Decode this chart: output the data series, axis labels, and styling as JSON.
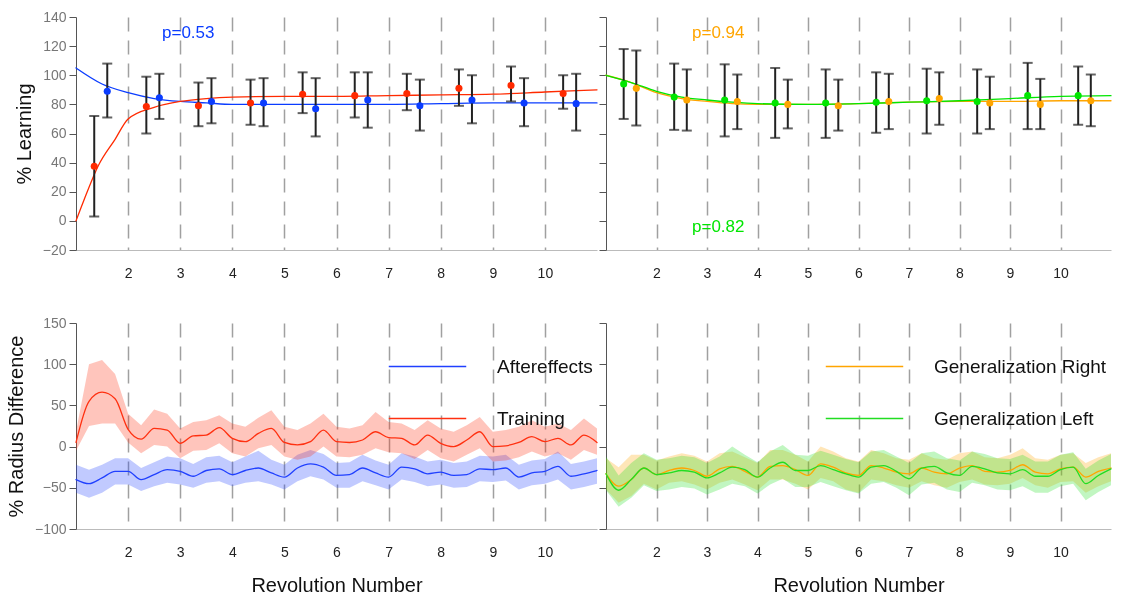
{
  "chart_data": [
    {
      "type": "scatter",
      "ylabel": "% Learning",
      "xlim": [
        1,
        11
      ],
      "xticks": [
        2,
        3,
        4,
        5,
        6,
        7,
        8,
        9,
        10
      ],
      "ylim": [
        -20,
        140
      ],
      "yticks": [
        -20,
        0,
        20,
        40,
        60,
        80,
        100,
        120,
        140
      ],
      "grid": "x",
      "annotations": [
        "p=0.53"
      ],
      "series": [
        {
          "color": "#0a3cff",
          "x": [
            1.6,
            2.6,
            3.6,
            4.6,
            5.6,
            6.6,
            7.6,
            8.6,
            9.6,
            10.6
          ],
          "values": [
            89,
            84.5,
            82,
            81,
            77,
            83,
            79,
            83,
            81,
            80.5
          ],
          "errors": [
            [
              71,
              108
            ],
            [
              70,
              101
            ],
            [
              67,
              98
            ],
            [
              65,
              98
            ],
            [
              58,
              98
            ],
            [
              64,
              102
            ],
            [
              62,
              97
            ],
            [
              67,
              100
            ],
            [
              65,
              98
            ],
            [
              62,
              101
            ]
          ]
        },
        {
          "color": "#ff2a00",
          "x": [
            1.35,
            2.35,
            3.35,
            4.35,
            5.35,
            6.35,
            7.35,
            8.35,
            9.35,
            10.35
          ],
          "values": [
            37.5,
            78.5,
            79,
            81,
            87,
            86,
            87.5,
            91,
            93,
            87.5
          ],
          "errors": [
            [
              3,
              72
            ],
            [
              60,
              99
            ],
            [
              65,
              95
            ],
            [
              66,
              97
            ],
            [
              74,
              102
            ],
            [
              71,
              102
            ],
            [
              76,
              101
            ],
            [
              79,
              104
            ],
            [
              82,
              106
            ],
            [
              77,
              100
            ]
          ]
        },
        {
          "type": "line",
          "color": "#0a3cff",
          "x": [
            1,
            1.5,
            2,
            2.5,
            3,
            3.5,
            4,
            5,
            6,
            7,
            8,
            9,
            10,
            11
          ],
          "values": [
            105,
            94,
            88,
            84,
            82,
            81,
            80,
            80,
            80,
            80,
            80.5,
            81,
            81,
            81
          ]
        },
        {
          "type": "line",
          "color": "#ff2a00",
          "x": [
            1,
            1.15,
            1.43,
            1.75,
            2,
            2.5,
            3,
            3.5,
            4,
            5,
            6,
            7,
            8,
            9,
            10,
            11
          ],
          "values": [
            0,
            14,
            38,
            56,
            70,
            78,
            82,
            84,
            85,
            85.5,
            85.5,
            86,
            86.5,
            87,
            88.5,
            90
          ]
        }
      ]
    },
    {
      "type": "scatter",
      "xlim": [
        1,
        11
      ],
      "xticks": [
        2,
        3,
        4,
        5,
        6,
        7,
        8,
        9,
        10
      ],
      "ylim": [
        -20,
        140
      ],
      "yticks": [
        -20,
        0,
        20,
        40,
        60,
        80,
        100,
        120,
        140
      ],
      "grid": "x",
      "tick_labels": "x",
      "annotations": [
        "p=0.94",
        "p=0.82"
      ],
      "series": [
        {
          "color": "#ffa500",
          "x": [
            1.6,
            2.6,
            3.6,
            4.6,
            5.6,
            6.6,
            7.6,
            8.6,
            9.6,
            10.6
          ],
          "values": [
            91,
            83,
            82,
            80,
            79,
            82,
            84,
            81,
            80,
            82.5
          ],
          "errors": [
            [
              65.5,
              117
            ],
            [
              62,
              104
            ],
            [
              63,
              100.5
            ],
            [
              63.5,
              97
            ],
            [
              62,
              97
            ],
            [
              63,
              101
            ],
            [
              66,
              102
            ],
            [
              63,
              99
            ],
            [
              63,
              97.5
            ],
            [
              65,
              100.5
            ]
          ]
        },
        {
          "color": "#00e600",
          "x": [
            1.35,
            2.35,
            3.35,
            4.35,
            5.35,
            6.35,
            7.35,
            8.35,
            9.35,
            10.35
          ],
          "values": [
            94,
            85,
            83,
            81,
            81,
            81.5,
            82.5,
            82,
            86,
            86
          ],
          "errors": [
            [
              70,
              118
            ],
            [
              62.5,
              108
            ],
            [
              58,
              107.5
            ],
            [
              57,
              105
            ],
            [
              57,
              104
            ],
            [
              60.5,
              102
            ],
            [
              60,
              104.5
            ],
            [
              60,
              104
            ],
            [
              63,
              108.5
            ],
            [
              66,
              106
            ]
          ]
        },
        {
          "type": "line",
          "color": "#ffa500",
          "x": [
            1,
            1.5,
            2,
            2.5,
            3,
            3.5,
            4,
            5,
            6,
            7,
            8,
            9,
            10,
            11
          ],
          "values": [
            100,
            95,
            88,
            84,
            82,
            80.5,
            80,
            80,
            80.5,
            81.5,
            82,
            82,
            82.5,
            82.5
          ]
        },
        {
          "type": "line",
          "color": "#00e600",
          "x": [
            1,
            1.5,
            2,
            2.5,
            3,
            3.5,
            4,
            5,
            6,
            7,
            8,
            9,
            10,
            11
          ],
          "values": [
            100,
            95,
            89,
            85,
            83,
            81.5,
            80.5,
            80,
            80.5,
            81.5,
            82.5,
            84,
            85.5,
            86
          ]
        }
      ]
    },
    {
      "type": "line",
      "xlabel": "Revolution Number",
      "ylabel": "% Radius Difference",
      "xlim": [
        1,
        11
      ],
      "xticks": [
        2,
        3,
        4,
        5,
        6,
        7,
        8,
        9,
        10
      ],
      "ylim": [
        -100,
        150
      ],
      "yticks": [
        -100,
        -50,
        0,
        50,
        100,
        150
      ],
      "grid": "x",
      "legend": "top right",
      "x": [
        1,
        1.25,
        1.5,
        1.75,
        2,
        2.25,
        2.5,
        2.75,
        3,
        3.25,
        3.5,
        3.75,
        4,
        4.25,
        4.5,
        4.75,
        5,
        5.25,
        5.5,
        5.75,
        6,
        6.25,
        6.5,
        6.75,
        7,
        7.25,
        7.5,
        7.75,
        8,
        8.25,
        8.5,
        8.75,
        9,
        9.25,
        9.5,
        9.75,
        10,
        10.25,
        10.5,
        10.75,
        11
      ],
      "series": [
        {
          "name": "Aftereffects",
          "color": "#2040ff",
          "values": [
            -40,
            -45,
            -38,
            -30,
            -30,
            -40,
            -34,
            -28,
            -30,
            -36,
            -29,
            -27,
            -34,
            -29,
            -26,
            -32,
            -37,
            -26,
            -21,
            -25,
            -35,
            -34,
            -26,
            -32,
            -37,
            -25,
            -27,
            -33,
            -31,
            -35,
            -34,
            -27,
            -28,
            -26,
            -37,
            -32,
            -30,
            -24,
            -36,
            -33,
            -29
          ],
          "lower": [
            -56,
            -62,
            -56,
            -46,
            -46,
            -54,
            -48,
            -44,
            -46,
            -50,
            -44,
            -42,
            -48,
            -44,
            -42,
            -46,
            -52,
            -42,
            -36,
            -40,
            -50,
            -50,
            -42,
            -47,
            -52,
            -40,
            -43,
            -48,
            -46,
            -50,
            -49,
            -42,
            -43,
            -41,
            -52,
            -47,
            -45,
            -40,
            -52,
            -49,
            -45
          ],
          "upper": [
            -22,
            -28,
            -22,
            -14,
            -14,
            -26,
            -19,
            -12,
            -14,
            -21,
            -13,
            -11,
            -19,
            -12,
            -5,
            -16,
            -22,
            -10,
            -4,
            -9,
            -20,
            -19,
            -10,
            -17,
            -22,
            -8,
            -12,
            -18,
            -16,
            -20,
            -18,
            -11,
            -12,
            -10,
            -22,
            -17,
            -15,
            -6,
            -21,
            -18,
            -14
          ]
        },
        {
          "name": "Training",
          "color": "#ff3010",
          "values": [
            5,
            55,
            66,
            58,
            21,
            9,
            22,
            20,
            4,
            13,
            14,
            23,
            10,
            6,
            16,
            22,
            5,
            2,
            6,
            20,
            6,
            5,
            8,
            18,
            11,
            10,
            2,
            14,
            4,
            0,
            8,
            18,
            0,
            1,
            5,
            12,
            6,
            10,
            2,
            14,
            5
          ],
          "lower": [
            -5,
            25,
            28,
            28,
            5,
            -8,
            2,
            0,
            -14,
            -5,
            -4,
            4,
            -8,
            -12,
            -2,
            2,
            -12,
            -16,
            -12,
            0,
            -12,
            -13,
            -10,
            -2,
            -7,
            -8,
            -15,
            -4,
            -14,
            -18,
            -10,
            -2,
            -18,
            -17,
            -13,
            -6,
            -12,
            -8,
            -16,
            -4,
            -10
          ],
          "upper": [
            18,
            100,
            105,
            88,
            40,
            26,
            45,
            40,
            22,
            30,
            32,
            38,
            28,
            24,
            35,
            44,
            24,
            20,
            28,
            40,
            24,
            22,
            26,
            42,
            30,
            28,
            20,
            32,
            22,
            18,
            26,
            36,
            18,
            20,
            24,
            32,
            24,
            28,
            20,
            34,
            22
          ]
        }
      ]
    },
    {
      "type": "line",
      "xlabel": "Revolution Number",
      "xlim": [
        1,
        11
      ],
      "xticks": [
        2,
        3,
        4,
        5,
        6,
        7,
        8,
        9,
        10
      ],
      "ylim": [
        -100,
        150
      ],
      "yticks": [
        -100,
        -50,
        0,
        50,
        100,
        150
      ],
      "grid": "x",
      "legend": "top right",
      "tick_labels": "x",
      "x": [
        1,
        1.25,
        1.5,
        1.75,
        2,
        2.25,
        2.5,
        2.75,
        3,
        3.25,
        3.5,
        3.75,
        4,
        4.25,
        4.5,
        4.75,
        5,
        5.25,
        5.5,
        5.75,
        6,
        6.25,
        6.5,
        6.75,
        7,
        7.25,
        7.5,
        7.75,
        8,
        8.25,
        8.5,
        8.75,
        9,
        9.25,
        9.5,
        9.75,
        10,
        10.25,
        10.5,
        10.75,
        11
      ],
      "series": [
        {
          "name": "Generalization Right",
          "color": "#ffa500",
          "values": [
            -33,
            -48,
            -40,
            -26,
            -34,
            -29,
            -26,
            -29,
            -36,
            -27,
            -24,
            -30,
            -37,
            -24,
            -23,
            -28,
            -35,
            -21,
            -25,
            -32,
            -35,
            -23,
            -26,
            -31,
            -33,
            -26,
            -31,
            -33,
            -26,
            -23,
            -30,
            -31,
            -29,
            -22,
            -31,
            -33,
            -27,
            -25,
            -37,
            -30,
            -26
          ],
          "lower": [
            -52,
            -68,
            -60,
            -45,
            -52,
            -44,
            -42,
            -46,
            -52,
            -44,
            -40,
            -46,
            -53,
            -40,
            -40,
            -45,
            -52,
            -38,
            -42,
            -52,
            -56,
            -40,
            -42,
            -47,
            -50,
            -42,
            -47,
            -50,
            -43,
            -40,
            -46,
            -47,
            -45,
            -38,
            -47,
            -50,
            -43,
            -42,
            -56,
            -48,
            -42
          ],
          "upper": [
            -14,
            -25,
            -10,
            -10,
            -17,
            -12,
            -8,
            -11,
            -18,
            -8,
            -6,
            -13,
            -20,
            -4,
            -4,
            -10,
            -18,
            0,
            -6,
            -14,
            -18,
            -4,
            -8,
            -14,
            -16,
            -8,
            -14,
            -16,
            -8,
            -6,
            -13,
            -14,
            -10,
            -2,
            -14,
            -16,
            -10,
            -8,
            -20,
            -13,
            -8
          ]
        },
        {
          "name": "Generalization Left",
          "color": "#22dd22",
          "values": [
            -33,
            -53,
            -40,
            -26,
            -34,
            -32,
            -29,
            -31,
            -38,
            -32,
            -25,
            -28,
            -37,
            -26,
            -19,
            -29,
            -29,
            -23,
            -28,
            -33,
            -37,
            -25,
            -23,
            -30,
            -39,
            -26,
            -24,
            -32,
            -35,
            -24,
            -27,
            -32,
            -33,
            -28,
            -36,
            -36,
            -28,
            -25,
            -45,
            -35,
            -27
          ],
          "lower": [
            -53,
            -73,
            -62,
            -47,
            -54,
            -52,
            -49,
            -51,
            -58,
            -52,
            -45,
            -48,
            -57,
            -46,
            -39,
            -49,
            -49,
            -43,
            -48,
            -53,
            -57,
            -45,
            -43,
            -50,
            -59,
            -46,
            -44,
            -52,
            -55,
            -44,
            -47,
            -52,
            -53,
            -48,
            -56,
            -56,
            -48,
            -45,
            -65,
            -55,
            -47
          ],
          "upper": [
            -12,
            -35,
            -20,
            -8,
            -16,
            -14,
            -11,
            -13,
            -20,
            -12,
            0,
            -10,
            -19,
            -6,
            2,
            -10,
            -11,
            -5,
            -10,
            -15,
            -19,
            -6,
            -4,
            -12,
            -20,
            -8,
            -6,
            -14,
            -17,
            -6,
            -9,
            -14,
            -15,
            -10,
            -18,
            -18,
            -10,
            -7,
            -27,
            -17,
            -9
          ]
        }
      ]
    }
  ]
}
